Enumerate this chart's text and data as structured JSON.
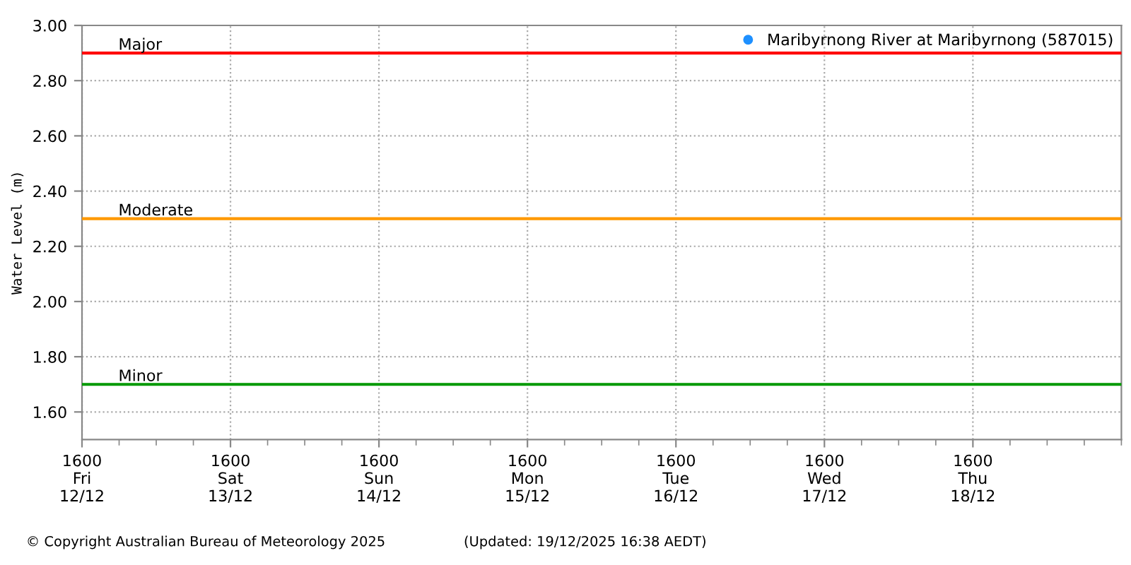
{
  "chart_data": {
    "type": "scatter",
    "ylabel": "Water Level (m)",
    "series": [
      {
        "name": "Maribyrnong River at Maribyrnong (587015)",
        "color": "#1e90ff",
        "values": [
          null,
          null,
          null,
          null,
          null,
          null,
          null
        ]
      }
    ],
    "marker": "circle",
    "categories": [
      "1600\nFri\n12/12",
      "1600\nSat\n13/12",
      "1600\nSun\n14/12",
      "1600\nMon\n15/12",
      "1600\nTue\n16/12",
      "1600\nWed\n17/12",
      "1600\nThu\n18/12"
    ],
    "ylim": [
      1.5,
      3.0
    ],
    "yticks": [
      {
        "value": 1.6,
        "label": "1.60"
      },
      {
        "value": 1.8,
        "label": "1.80"
      },
      {
        "value": 2.0,
        "label": "2.00"
      },
      {
        "value": 2.2,
        "label": "2.20"
      },
      {
        "value": 2.4,
        "label": "2.40"
      },
      {
        "value": 2.6,
        "label": "2.60"
      },
      {
        "value": 2.8,
        "label": "2.80"
      },
      {
        "value": 3.0,
        "label": "3.00"
      }
    ],
    "ref_lines": [
      {
        "axis": "y",
        "value": 2.9,
        "label": "Major",
        "color": "#ff0000"
      },
      {
        "axis": "y",
        "value": 2.3,
        "label": "Moderate",
        "color": "#ff9900"
      },
      {
        "axis": "y",
        "value": 1.7,
        "label": "Minor",
        "color": "#009900"
      }
    ],
    "grid": true,
    "legend": "top right",
    "annotations": [
      "© Copyright Australian Bureau of Meteorology 2025",
      "(Updated: 19/12/2025 16:38 AEDT)"
    ]
  }
}
